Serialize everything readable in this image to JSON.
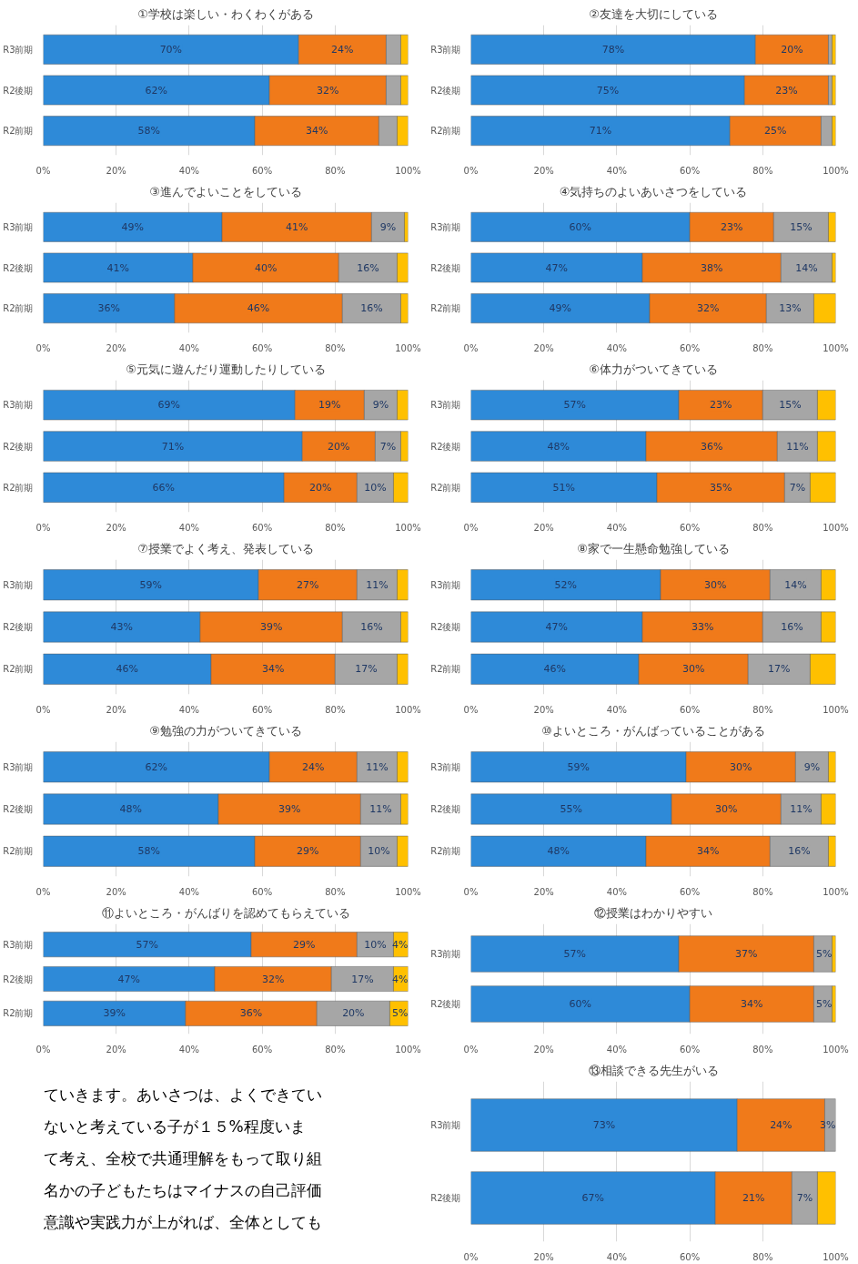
{
  "chart_data": [
    {
      "type": "bar",
      "orientation": "horizontal",
      "stacked": true,
      "grid": "x",
      "title": "①学校は楽しい・わくわくがある",
      "categories": [
        "R3前期",
        "R2後期",
        "R2前期"
      ],
      "xlim": [
        0,
        100
      ],
      "xticks": [
        {
          "value": 0,
          "label": "0%"
        },
        {
          "value": 20,
          "label": "20%"
        },
        {
          "value": 40,
          "label": "40%"
        },
        {
          "value": 60,
          "label": "60%"
        },
        {
          "value": 80,
          "label": "80%"
        },
        {
          "value": 100,
          "label": "100%"
        }
      ],
      "series": [
        {
          "color": "#2e8ad8",
          "values": [
            70,
            62,
            58
          ],
          "value_labels": [
            "70%",
            "62%",
            "58%"
          ]
        },
        {
          "color": "#f07a1a",
          "values": [
            24,
            32,
            34
          ],
          "value_labels": [
            "24%",
            "32%",
            "34%"
          ]
        },
        {
          "color": "#a6a6a6",
          "values": [
            4,
            4,
            5
          ]
        },
        {
          "color": "#ffc000",
          "values": [
            2,
            2,
            3
          ]
        }
      ]
    },
    {
      "type": "bar",
      "orientation": "horizontal",
      "stacked": true,
      "grid": "x",
      "title": "②友達を大切にしている",
      "categories": [
        "R3前期",
        "R2後期",
        "R2前期"
      ],
      "xlim": [
        0,
        100
      ],
      "xticks": [
        {
          "value": 0,
          "label": "0%"
        },
        {
          "value": 20,
          "label": "20%"
        },
        {
          "value": 40,
          "label": "40%"
        },
        {
          "value": 60,
          "label": "60%"
        },
        {
          "value": 80,
          "label": "80%"
        },
        {
          "value": 100,
          "label": "100%"
        }
      ],
      "series": [
        {
          "color": "#2e8ad8",
          "values": [
            78,
            75,
            71
          ],
          "value_labels": [
            "78%",
            "75%",
            "71%"
          ]
        },
        {
          "color": "#f07a1a",
          "values": [
            20,
            23,
            25
          ],
          "value_labels": [
            "20%",
            "23%",
            "25%"
          ]
        },
        {
          "color": "#a6a6a6",
          "values": [
            1,
            1,
            3
          ]
        },
        {
          "color": "#ffc000",
          "values": [
            1,
            1,
            1
          ]
        }
      ]
    },
    {
      "type": "bar",
      "orientation": "horizontal",
      "stacked": true,
      "grid": "x",
      "title": "③進んでよいことをしている",
      "categories": [
        "R3前期",
        "R2後期",
        "R2前期"
      ],
      "xlim": [
        0,
        100
      ],
      "xticks": [
        {
          "value": 0,
          "label": "0%"
        },
        {
          "value": 20,
          "label": "20%"
        },
        {
          "value": 40,
          "label": "40%"
        },
        {
          "value": 60,
          "label": "60%"
        },
        {
          "value": 80,
          "label": "80%"
        },
        {
          "value": 100,
          "label": "100%"
        }
      ],
      "series": [
        {
          "color": "#2e8ad8",
          "values": [
            49,
            41,
            36
          ],
          "value_labels": [
            "49%",
            "41%",
            "36%"
          ]
        },
        {
          "color": "#f07a1a",
          "values": [
            41,
            40,
            46
          ],
          "value_labels": [
            "41%",
            "40%",
            "46%"
          ]
        },
        {
          "color": "#a6a6a6",
          "values": [
            9,
            16,
            16
          ],
          "value_labels": [
            "9%",
            "16%",
            "16%"
          ]
        },
        {
          "color": "#ffc000",
          "values": [
            1,
            3,
            2
          ]
        }
      ]
    },
    {
      "type": "bar",
      "orientation": "horizontal",
      "stacked": true,
      "grid": "x",
      "title": "④気持ちのよいあいさつをしている",
      "categories": [
        "R3前期",
        "R2後期",
        "R2前期"
      ],
      "xlim": [
        0,
        100
      ],
      "xticks": [
        {
          "value": 0,
          "label": "0%"
        },
        {
          "value": 20,
          "label": "20%"
        },
        {
          "value": 40,
          "label": "40%"
        },
        {
          "value": 60,
          "label": "60%"
        },
        {
          "value": 80,
          "label": "80%"
        },
        {
          "value": 100,
          "label": "100%"
        }
      ],
      "series": [
        {
          "color": "#2e8ad8",
          "values": [
            60,
            47,
            49
          ],
          "value_labels": [
            "60%",
            "47%",
            "49%"
          ]
        },
        {
          "color": "#f07a1a",
          "values": [
            23,
            38,
            32
          ],
          "value_labels": [
            "23%",
            "38%",
            "32%"
          ]
        },
        {
          "color": "#a6a6a6",
          "values": [
            15,
            14,
            13
          ],
          "value_labels": [
            "15%",
            "14%",
            "13%"
          ]
        },
        {
          "color": "#ffc000",
          "values": [
            2,
            1,
            6
          ]
        }
      ]
    },
    {
      "type": "bar",
      "orientation": "horizontal",
      "stacked": true,
      "grid": "x",
      "title": "⑤元気に遊んだり運動したりしている",
      "categories": [
        "R3前期",
        "R2後期",
        "R2前期"
      ],
      "xlim": [
        0,
        100
      ],
      "xticks": [
        {
          "value": 0,
          "label": "0%"
        },
        {
          "value": 20,
          "label": "20%"
        },
        {
          "value": 40,
          "label": "40%"
        },
        {
          "value": 60,
          "label": "60%"
        },
        {
          "value": 80,
          "label": "80%"
        },
        {
          "value": 100,
          "label": "100%"
        }
      ],
      "series": [
        {
          "color": "#2e8ad8",
          "values": [
            69,
            71,
            66
          ],
          "value_labels": [
            "69%",
            "71%",
            "66%"
          ]
        },
        {
          "color": "#f07a1a",
          "values": [
            19,
            20,
            20
          ],
          "value_labels": [
            "19%",
            "20%",
            "20%"
          ]
        },
        {
          "color": "#a6a6a6",
          "values": [
            9,
            7,
            10
          ],
          "value_labels": [
            "9%",
            "7%",
            "10%"
          ]
        },
        {
          "color": "#ffc000",
          "values": [
            3,
            2,
            4
          ]
        }
      ]
    },
    {
      "type": "bar",
      "orientation": "horizontal",
      "stacked": true,
      "grid": "x",
      "title": "⑥体力がついてきている",
      "categories": [
        "R3前期",
        "R2後期",
        "R2前期"
      ],
      "xlim": [
        0,
        100
      ],
      "xticks": [
        {
          "value": 0,
          "label": "0%"
        },
        {
          "value": 20,
          "label": "20%"
        },
        {
          "value": 40,
          "label": "40%"
        },
        {
          "value": 60,
          "label": "60%"
        },
        {
          "value": 80,
          "label": "80%"
        },
        {
          "value": 100,
          "label": "100%"
        }
      ],
      "series": [
        {
          "color": "#2e8ad8",
          "values": [
            57,
            48,
            51
          ],
          "value_labels": [
            "57%",
            "48%",
            "51%"
          ]
        },
        {
          "color": "#f07a1a",
          "values": [
            23,
            36,
            35
          ],
          "value_labels": [
            "23%",
            "36%",
            "35%"
          ]
        },
        {
          "color": "#a6a6a6",
          "values": [
            15,
            11,
            7
          ],
          "value_labels": [
            "15%",
            "11%",
            "7%"
          ]
        },
        {
          "color": "#ffc000",
          "values": [
            5,
            5,
            7
          ]
        }
      ]
    },
    {
      "type": "bar",
      "orientation": "horizontal",
      "stacked": true,
      "grid": "x",
      "title": "⑦授業でよく考え、発表している",
      "categories": [
        "R3前期",
        "R2後期",
        "R2前期"
      ],
      "xlim": [
        0,
        100
      ],
      "xticks": [
        {
          "value": 0,
          "label": "0%"
        },
        {
          "value": 20,
          "label": "20%"
        },
        {
          "value": 40,
          "label": "40%"
        },
        {
          "value": 60,
          "label": "60%"
        },
        {
          "value": 80,
          "label": "80%"
        },
        {
          "value": 100,
          "label": "100%"
        }
      ],
      "series": [
        {
          "color": "#2e8ad8",
          "values": [
            59,
            43,
            46
          ],
          "value_labels": [
            "59%",
            "43%",
            "46%"
          ]
        },
        {
          "color": "#f07a1a",
          "values": [
            27,
            39,
            34
          ],
          "value_labels": [
            "27%",
            "39%",
            "34%"
          ]
        },
        {
          "color": "#a6a6a6",
          "values": [
            11,
            16,
            17
          ],
          "value_labels": [
            "11%",
            "16%",
            "17%"
          ]
        },
        {
          "color": "#ffc000",
          "values": [
            3,
            2,
            3
          ]
        }
      ]
    },
    {
      "type": "bar",
      "orientation": "horizontal",
      "stacked": true,
      "grid": "x",
      "title": "⑧家で一生懸命勉強している",
      "categories": [
        "R3前期",
        "R2後期",
        "R2前期"
      ],
      "xlim": [
        0,
        100
      ],
      "xticks": [
        {
          "value": 0,
          "label": "0%"
        },
        {
          "value": 20,
          "label": "20%"
        },
        {
          "value": 40,
          "label": "40%"
        },
        {
          "value": 60,
          "label": "60%"
        },
        {
          "value": 80,
          "label": "80%"
        },
        {
          "value": 100,
          "label": "100%"
        }
      ],
      "series": [
        {
          "color": "#2e8ad8",
          "values": [
            52,
            47,
            46
          ],
          "value_labels": [
            "52%",
            "47%",
            "46%"
          ]
        },
        {
          "color": "#f07a1a",
          "values": [
            30,
            33,
            30
          ],
          "value_labels": [
            "30%",
            "33%",
            "30%"
          ]
        },
        {
          "color": "#a6a6a6",
          "values": [
            14,
            16,
            17
          ],
          "value_labels": [
            "14%",
            "16%",
            "17%"
          ]
        },
        {
          "color": "#ffc000",
          "values": [
            4,
            4,
            7
          ]
        }
      ]
    },
    {
      "type": "bar",
      "orientation": "horizontal",
      "stacked": true,
      "grid": "x",
      "title": "⑨勉強の力がついてきている",
      "categories": [
        "R3前期",
        "R2後期",
        "R2前期"
      ],
      "xlim": [
        0,
        100
      ],
      "xticks": [
        {
          "value": 0,
          "label": "0%"
        },
        {
          "value": 20,
          "label": "20%"
        },
        {
          "value": 40,
          "label": "40%"
        },
        {
          "value": 60,
          "label": "60%"
        },
        {
          "value": 80,
          "label": "80%"
        },
        {
          "value": 100,
          "label": "100%"
        }
      ],
      "series": [
        {
          "color": "#2e8ad8",
          "values": [
            62,
            48,
            58
          ],
          "value_labels": [
            "62%",
            "48%",
            "58%"
          ]
        },
        {
          "color": "#f07a1a",
          "values": [
            24,
            39,
            29
          ],
          "value_labels": [
            "24%",
            "39%",
            "29%"
          ]
        },
        {
          "color": "#a6a6a6",
          "values": [
            11,
            11,
            10
          ],
          "value_labels": [
            "11%",
            "11%",
            "10%"
          ]
        },
        {
          "color": "#ffc000",
          "values": [
            3,
            2,
            3
          ]
        }
      ]
    },
    {
      "type": "bar",
      "orientation": "horizontal",
      "stacked": true,
      "grid": "x",
      "title": "⑩よいところ・がんばっていることがある",
      "categories": [
        "R3前期",
        "R2後期",
        "R2前期"
      ],
      "xlim": [
        0,
        100
      ],
      "xticks": [
        {
          "value": 0,
          "label": "0%"
        },
        {
          "value": 20,
          "label": "20%"
        },
        {
          "value": 40,
          "label": "40%"
        },
        {
          "value": 60,
          "label": "60%"
        },
        {
          "value": 80,
          "label": "80%"
        },
        {
          "value": 100,
          "label": "100%"
        }
      ],
      "series": [
        {
          "color": "#2e8ad8",
          "values": [
            59,
            55,
            48
          ],
          "value_labels": [
            "59%",
            "55%",
            "48%"
          ]
        },
        {
          "color": "#f07a1a",
          "values": [
            30,
            30,
            34
          ],
          "value_labels": [
            "30%",
            "30%",
            "34%"
          ]
        },
        {
          "color": "#a6a6a6",
          "values": [
            9,
            11,
            16
          ],
          "value_labels": [
            "9%",
            "11%",
            "16%"
          ]
        },
        {
          "color": "#ffc000",
          "values": [
            2,
            4,
            2
          ]
        }
      ]
    },
    {
      "type": "bar",
      "orientation": "horizontal",
      "stacked": true,
      "grid": "x",
      "title": "⑪よいところ・がんばりを認めてもらえている",
      "categories": [
        "R3前期",
        "R2後期",
        "R2前期"
      ],
      "xlim": [
        0,
        100
      ],
      "xticks": [
        {
          "value": 0,
          "label": "0%"
        },
        {
          "value": 20,
          "label": "20%"
        },
        {
          "value": 40,
          "label": "40%"
        },
        {
          "value": 60,
          "label": "60%"
        },
        {
          "value": 80,
          "label": "80%"
        },
        {
          "value": 100,
          "label": "100%"
        }
      ],
      "series": [
        {
          "color": "#2e8ad8",
          "values": [
            57,
            47,
            39
          ],
          "value_labels": [
            "57%",
            "47%",
            "39%"
          ]
        },
        {
          "color": "#f07a1a",
          "values": [
            29,
            32,
            36
          ],
          "value_labels": [
            "29%",
            "32%",
            "36%"
          ]
        },
        {
          "color": "#a6a6a6",
          "values": [
            10,
            17,
            20
          ],
          "value_labels": [
            "10%",
            "17%",
            "20%"
          ]
        },
        {
          "color": "#ffc000",
          "values": [
            4,
            4,
            5
          ],
          "value_labels": [
            "4%",
            "4%",
            "5%"
          ]
        }
      ]
    },
    {
      "type": "bar",
      "orientation": "horizontal",
      "stacked": true,
      "grid": "x",
      "title": "⑫授業はわかりやすい",
      "categories": [
        "R3前期",
        "R2後期"
      ],
      "xlim": [
        0,
        100
      ],
      "xticks": [
        {
          "value": 0,
          "label": "0%"
        },
        {
          "value": 20,
          "label": "20%"
        },
        {
          "value": 40,
          "label": "40%"
        },
        {
          "value": 60,
          "label": "60%"
        },
        {
          "value": 80,
          "label": "80%"
        },
        {
          "value": 100,
          "label": "100%"
        }
      ],
      "series": [
        {
          "color": "#2e8ad8",
          "values": [
            57,
            60
          ],
          "value_labels": [
            "57%",
            "60%"
          ]
        },
        {
          "color": "#f07a1a",
          "values": [
            37,
            34
          ],
          "value_labels": [
            "37%",
            "34%"
          ]
        },
        {
          "color": "#a6a6a6",
          "values": [
            5,
            5
          ],
          "value_labels": [
            "5%",
            "5%"
          ]
        },
        {
          "color": "#ffc000",
          "values": [
            1,
            1
          ]
        }
      ]
    },
    {
      "type": "other",
      "annotations": [
        "ていきます。あいさつは、よくできてい",
        "ないと考えている子が１５%程度いま",
        "て考え、全校で共通理解をもって取り組",
        "名かの子どもたちはマイナスの自己評価",
        "意識や実践力が上がれば、全体としても"
      ]
    },
    {
      "type": "bar",
      "orientation": "horizontal",
      "stacked": true,
      "grid": "x",
      "title": "⑬相談できる先生がいる",
      "categories": [
        "R3前期",
        "R2後期"
      ],
      "xlim": [
        0,
        100
      ],
      "xticks": [
        {
          "value": 0,
          "label": "0%"
        },
        {
          "value": 20,
          "label": "20%"
        },
        {
          "value": 40,
          "label": "40%"
        },
        {
          "value": 60,
          "label": "60%"
        },
        {
          "value": 80,
          "label": "80%"
        },
        {
          "value": 100,
          "label": "100%"
        }
      ],
      "series": [
        {
          "color": "#2e8ad8",
          "values": [
            73,
            67
          ],
          "value_labels": [
            "73%",
            "67%"
          ]
        },
        {
          "color": "#f07a1a",
          "values": [
            24,
            21
          ],
          "value_labels": [
            "24%",
            "21%"
          ]
        },
        {
          "color": "#a6a6a6",
          "values": [
            3,
            7
          ],
          "value_labels": [
            "3%",
            "7%"
          ]
        },
        {
          "color": "#ffc000",
          "values": [
            null,
            5
          ]
        }
      ]
    }
  ]
}
